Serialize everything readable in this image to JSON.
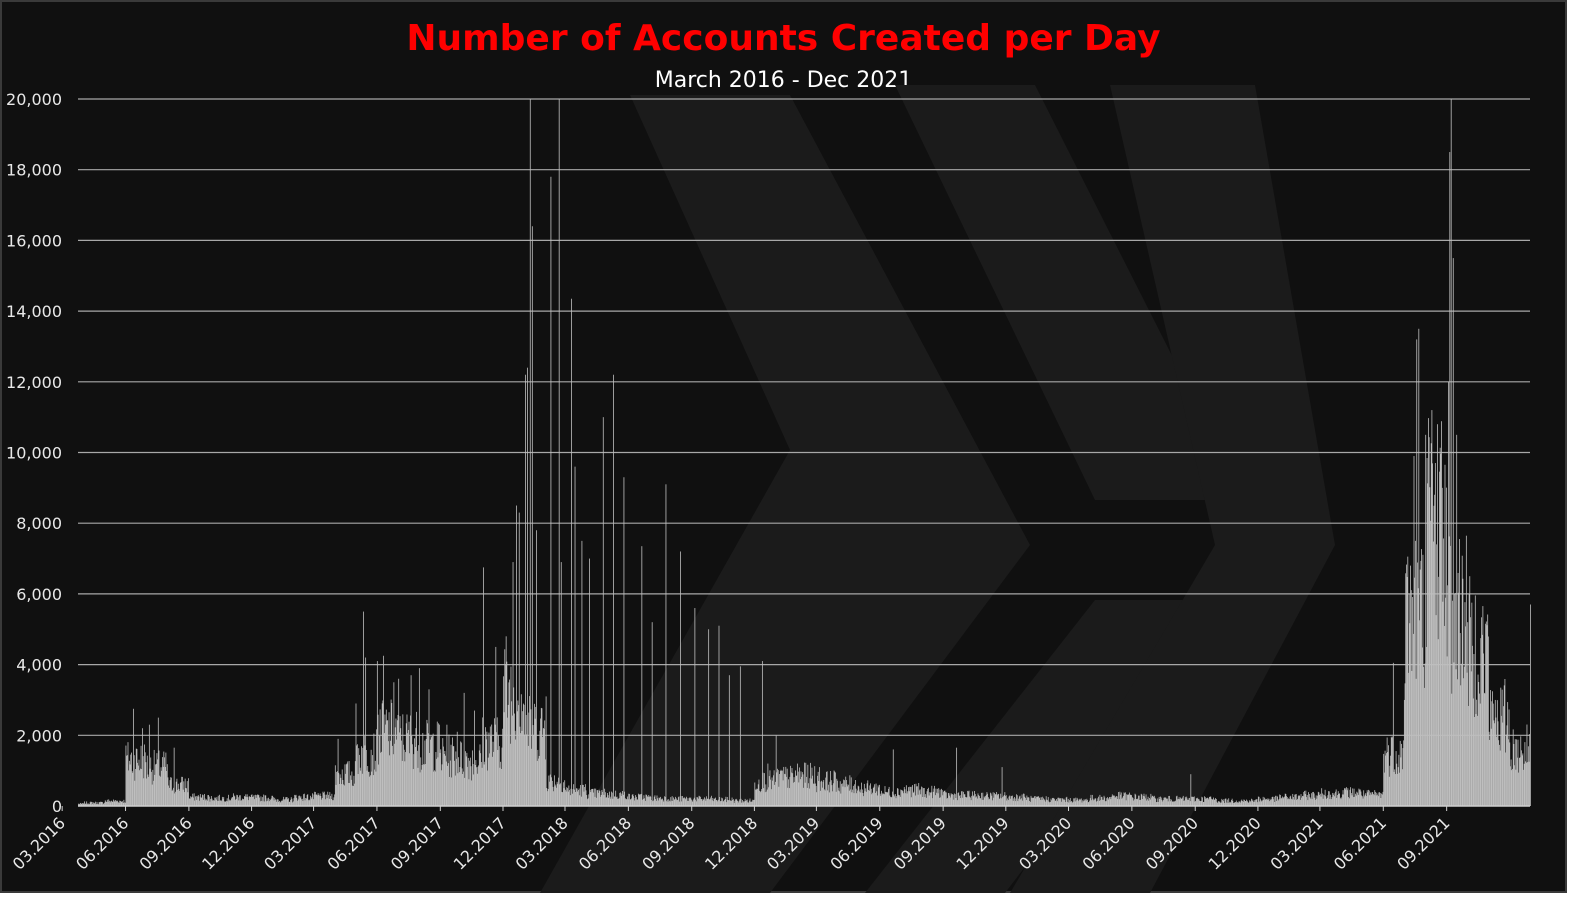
{
  "chart_data": {
    "type": "bar",
    "title": "Number of Accounts Created per Day",
    "subtitle": "March 2016 - Dec 2021",
    "xlabel": "",
    "ylabel": "",
    "ylim": [
      0,
      20000
    ],
    "y_ticks": [
      "0",
      "2,000",
      "4,000",
      "6,000",
      "8,000",
      "10,000",
      "12,000",
      "14,000",
      "16,000",
      "18,000",
      "20,000"
    ],
    "x_ticks": [
      "03.2016",
      "06.2016",
      "09.2016",
      "12.2016",
      "03.2017",
      "06.2017",
      "09.2017",
      "12.2017",
      "03.2018",
      "06.2018",
      "09.2018",
      "12.2018",
      "03.2019",
      "06.2019",
      "09.2019",
      "12.2019",
      "03.2020",
      "06.2020",
      "09.2020",
      "12.2020",
      "03.2021",
      "06.2021",
      "09.2021"
    ],
    "x_range": [
      "2016-03-24",
      "2021-12-31"
    ],
    "grid": true,
    "legend": "none",
    "bar_color": "#bfbfbf",
    "series": [
      {
        "baseline_by_month": [
          {
            "month": "2016-03",
            "value": 60
          },
          {
            "month": "2016-04",
            "value": 90
          },
          {
            "month": "2016-05",
            "value": 140
          },
          {
            "month": "2016-06",
            "value": 1300
          },
          {
            "month": "2016-07",
            "value": 1100
          },
          {
            "month": "2016-08",
            "value": 600
          },
          {
            "month": "2016-09",
            "value": 250
          },
          {
            "month": "2016-10",
            "value": 220
          },
          {
            "month": "2016-11",
            "value": 250
          },
          {
            "month": "2016-12",
            "value": 230
          },
          {
            "month": "2017-01",
            "value": 180
          },
          {
            "month": "2017-02",
            "value": 250
          },
          {
            "month": "2017-03",
            "value": 280
          },
          {
            "month": "2017-04",
            "value": 900
          },
          {
            "month": "2017-05",
            "value": 1500
          },
          {
            "month": "2017-06",
            "value": 2100
          },
          {
            "month": "2017-07",
            "value": 1900
          },
          {
            "month": "2017-08",
            "value": 1700
          },
          {
            "month": "2017-09",
            "value": 1400
          },
          {
            "month": "2017-10",
            "value": 1300
          },
          {
            "month": "2017-11",
            "value": 1800
          },
          {
            "month": "2017-12",
            "value": 3200
          },
          {
            "month": "2018-01",
            "value": 2200
          },
          {
            "month": "2018-02",
            "value": 700
          },
          {
            "month": "2018-03",
            "value": 450
          },
          {
            "month": "2018-04",
            "value": 350
          },
          {
            "month": "2018-05",
            "value": 320
          },
          {
            "month": "2018-06",
            "value": 250
          },
          {
            "month": "2018-07",
            "value": 220
          },
          {
            "month": "2018-08",
            "value": 200
          },
          {
            "month": "2018-09",
            "value": 200
          },
          {
            "month": "2018-10",
            "value": 180
          },
          {
            "month": "2018-11",
            "value": 150
          },
          {
            "month": "2018-12",
            "value": 700
          },
          {
            "month": "2019-01",
            "value": 800
          },
          {
            "month": "2019-02",
            "value": 850
          },
          {
            "month": "2019-03",
            "value": 700
          },
          {
            "month": "2019-04",
            "value": 600
          },
          {
            "month": "2019-05",
            "value": 500
          },
          {
            "month": "2019-06",
            "value": 400
          },
          {
            "month": "2019-07",
            "value": 450
          },
          {
            "month": "2019-08",
            "value": 400
          },
          {
            "month": "2019-09",
            "value": 300
          },
          {
            "month": "2019-10",
            "value": 300
          },
          {
            "month": "2019-11",
            "value": 280
          },
          {
            "month": "2019-12",
            "value": 250
          },
          {
            "month": "2020-01",
            "value": 200
          },
          {
            "month": "2020-02",
            "value": 180
          },
          {
            "month": "2020-03",
            "value": 170
          },
          {
            "month": "2020-04",
            "value": 220
          },
          {
            "month": "2020-05",
            "value": 280
          },
          {
            "month": "2020-06",
            "value": 250
          },
          {
            "month": "2020-07",
            "value": 200
          },
          {
            "month": "2020-08",
            "value": 200
          },
          {
            "month": "2020-09",
            "value": 200
          },
          {
            "month": "2020-10",
            "value": 150
          },
          {
            "month": "2020-11",
            "value": 150
          },
          {
            "month": "2020-12",
            "value": 200
          },
          {
            "month": "2021-01",
            "value": 250
          },
          {
            "month": "2021-02",
            "value": 300
          },
          {
            "month": "2021-03",
            "value": 350
          },
          {
            "month": "2021-04",
            "value": 380
          },
          {
            "month": "2021-05",
            "value": 320
          },
          {
            "month": "2021-06",
            "value": 1500
          },
          {
            "month": "2021-07",
            "value": 5500
          },
          {
            "month": "2021-08",
            "value": 8000
          },
          {
            "month": "2021-09",
            "value": 5500
          },
          {
            "month": "2021-10",
            "value": 4500
          },
          {
            "month": "2021-11",
            "value": 2500
          },
          {
            "month": "2021-12",
            "value": 1600
          }
        ],
        "spikes": [
          {
            "date": "2016-06-12",
            "value": 2750
          },
          {
            "date": "2016-06-25",
            "value": 2200
          },
          {
            "date": "2016-07-05",
            "value": 2300
          },
          {
            "date": "2016-07-18",
            "value": 2500
          },
          {
            "date": "2016-08-10",
            "value": 1650
          },
          {
            "date": "2017-04-05",
            "value": 1900
          },
          {
            "date": "2017-05-01",
            "value": 2900
          },
          {
            "date": "2017-05-12",
            "value": 5500
          },
          {
            "date": "2017-05-15",
            "value": 4200
          },
          {
            "date": "2017-06-01",
            "value": 4100
          },
          {
            "date": "2017-06-10",
            "value": 4250
          },
          {
            "date": "2017-06-25",
            "value": 3500
          },
          {
            "date": "2017-07-02",
            "value": 3600
          },
          {
            "date": "2017-07-20",
            "value": 3700
          },
          {
            "date": "2017-08-01",
            "value": 3900
          },
          {
            "date": "2017-08-15",
            "value": 3300
          },
          {
            "date": "2017-09-10",
            "value": 2300
          },
          {
            "date": "2017-09-25",
            "value": 2100
          },
          {
            "date": "2017-10-05",
            "value": 3200
          },
          {
            "date": "2017-10-20",
            "value": 2700
          },
          {
            "date": "2017-11-02",
            "value": 6750
          },
          {
            "date": "2017-11-20",
            "value": 4500
          },
          {
            "date": "2017-12-05",
            "value": 4800
          },
          {
            "date": "2017-12-15",
            "value": 6900
          },
          {
            "date": "2017-12-20",
            "value": 8500
          },
          {
            "date": "2017-12-24",
            "value": 8300
          },
          {
            "date": "2018-01-02",
            "value": 12200
          },
          {
            "date": "2018-01-05",
            "value": 12400
          },
          {
            "date": "2018-01-09",
            "value": 20000
          },
          {
            "date": "2018-01-12",
            "value": 16400
          },
          {
            "date": "2018-01-18",
            "value": 7800
          },
          {
            "date": "2018-02-01",
            "value": 3100
          },
          {
            "date": "2018-02-08",
            "value": 17800
          },
          {
            "date": "2018-02-20",
            "value": 20000
          },
          {
            "date": "2018-02-23",
            "value": 6900
          },
          {
            "date": "2018-03-10",
            "value": 14350
          },
          {
            "date": "2018-03-15",
            "value": 9600
          },
          {
            "date": "2018-03-25",
            "value": 7500
          },
          {
            "date": "2018-04-05",
            "value": 7000
          },
          {
            "date": "2018-04-25",
            "value": 11000
          },
          {
            "date": "2018-05-10",
            "value": 12200
          },
          {
            "date": "2018-05-25",
            "value": 9300
          },
          {
            "date": "2018-06-20",
            "value": 7350
          },
          {
            "date": "2018-07-05",
            "value": 5200
          },
          {
            "date": "2018-07-25",
            "value": 9100
          },
          {
            "date": "2018-08-15",
            "value": 7200
          },
          {
            "date": "2018-09-05",
            "value": 5600
          },
          {
            "date": "2018-09-25",
            "value": 5000
          },
          {
            "date": "2018-10-10",
            "value": 5100
          },
          {
            "date": "2018-10-25",
            "value": 3700
          },
          {
            "date": "2018-11-10",
            "value": 3950
          },
          {
            "date": "2018-12-12",
            "value": 4100
          },
          {
            "date": "2018-12-20",
            "value": 1200
          },
          {
            "date": "2019-01-01",
            "value": 2000
          },
          {
            "date": "2019-02-01",
            "value": 1200
          },
          {
            "date": "2019-03-05",
            "value": 1100
          },
          {
            "date": "2019-06-20",
            "value": 1600
          },
          {
            "date": "2019-09-20",
            "value": 1650
          },
          {
            "date": "2019-11-25",
            "value": 1100
          },
          {
            "date": "2020-08-25",
            "value": 900
          },
          {
            "date": "2021-06-15",
            "value": 4050
          },
          {
            "date": "2021-07-01",
            "value": 3000
          },
          {
            "date": "2021-07-10",
            "value": 6800
          },
          {
            "date": "2021-07-15",
            "value": 9900
          },
          {
            "date": "2021-07-19",
            "value": 13200
          },
          {
            "date": "2021-07-22",
            "value": 13500
          },
          {
            "date": "2021-08-01",
            "value": 10500
          },
          {
            "date": "2021-08-10",
            "value": 11200
          },
          {
            "date": "2021-08-18",
            "value": 10800
          },
          {
            "date": "2021-08-25",
            "value": 9000
          },
          {
            "date": "2021-09-03",
            "value": 12000
          },
          {
            "date": "2021-09-05",
            "value": 18500
          },
          {
            "date": "2021-09-07",
            "value": 20000
          },
          {
            "date": "2021-09-10",
            "value": 15500
          },
          {
            "date": "2021-09-15",
            "value": 10500
          },
          {
            "date": "2021-10-01",
            "value": 5200
          },
          {
            "date": "2021-10-10",
            "value": 4300
          },
          {
            "date": "2021-10-25",
            "value": 3200
          },
          {
            "date": "2021-11-10",
            "value": 3000
          },
          {
            "date": "2021-12-31",
            "value": 5700
          }
        ]
      }
    ]
  }
}
